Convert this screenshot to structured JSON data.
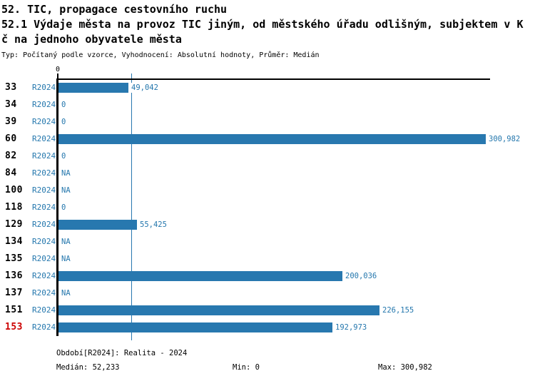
{
  "title": {
    "line1": "52. TIC, propagace cestovního ruchu",
    "line2": "52.1 Výdaje města na provoz TIC jiným, od městského úřadu odlišným, subjektem v K",
    "line3": "č na jednoho obyvatele města",
    "subtitle": "Typ: Počítaný podle vzorce, Vyhodnocení: Absolutní hodnoty, Průměr: Medián"
  },
  "chart_data": {
    "type": "bar",
    "orientation": "horizontal",
    "title": "52.1 Výdaje města na provoz TIC jiným, od městského úřadu odlišným, subjektem v Kč na jednoho obyvatele města",
    "categories": [
      "33",
      "34",
      "39",
      "60",
      "82",
      "84",
      "100",
      "118",
      "129",
      "134",
      "135",
      "136",
      "137",
      "151",
      "153"
    ],
    "series_label": "R2024",
    "values": [
      49042,
      0,
      0,
      300982,
      0,
      null,
      null,
      0,
      55425,
      null,
      null,
      200036,
      null,
      226155,
      192973
    ],
    "value_labels": [
      "49,042",
      "0",
      "0",
      "300,982",
      "0",
      "NA",
      "NA",
      "0",
      "55,425",
      "NA",
      "NA",
      "200,036",
      "NA",
      "226,155",
      "192,973"
    ],
    "highlighted_category": "153",
    "axis": {
      "zero_label": "0",
      "xmin": 0,
      "xmax": 300982,
      "median": 52233
    },
    "colors": {
      "bar": "#2878af",
      "text_blue": "#2477ad",
      "highlight_red": "#cc0000",
      "axis_black": "#000000"
    },
    "legend_position": "none",
    "grid": false
  },
  "footer": {
    "period": "Období[R2024]: Realita - 2024",
    "median": "Medián: 52,233",
    "min": "Min: 0",
    "max": "Max: 300,982"
  }
}
